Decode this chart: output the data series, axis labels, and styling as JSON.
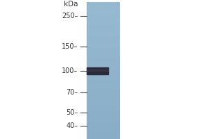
{
  "background_color": "#ffffff",
  "gel_color_top": "#8db8cc",
  "gel_color_mid": "#7aaec4",
  "gel_color_bot": "#6fa8c0",
  "band_color": "#2a2a3a",
  "markers": [
    250,
    150,
    100,
    70,
    50,
    40
  ],
  "kda_label": "kDa",
  "label_color": "#333333",
  "tick_color": "#444444",
  "band_kda": 100,
  "fig_width": 3.0,
  "fig_height": 2.0,
  "dpi": 100
}
